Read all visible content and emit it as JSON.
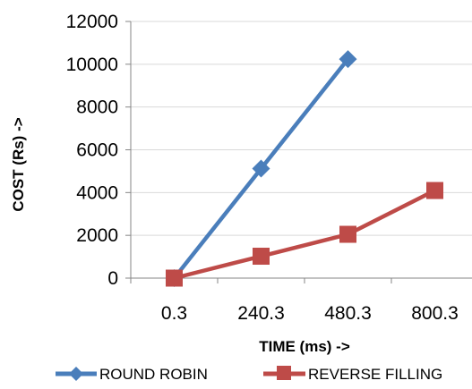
{
  "chart_data": {
    "type": "line",
    "title": "",
    "xlabel": "TIME (ms)  ->",
    "ylabel": "COST (Rs)  ->",
    "categories": [
      "0.3",
      "240.3",
      "480.3",
      "800.3"
    ],
    "ylim": [
      0,
      12000
    ],
    "yticks": [
      "0",
      "2000",
      "4000",
      "6000",
      "8000",
      "10000",
      "12000"
    ],
    "grid": true,
    "legend_position": "bottom",
    "series": [
      {
        "name": "ROUND ROBIN",
        "color": "#4a7ebb",
        "marker": "diamond",
        "values": [
          0,
          5120,
          10240,
          null
        ]
      },
      {
        "name": "REVERSE FILLING",
        "color": "#be4b48",
        "marker": "square",
        "values": [
          0,
          1024,
          2048,
          4096
        ]
      }
    ]
  }
}
